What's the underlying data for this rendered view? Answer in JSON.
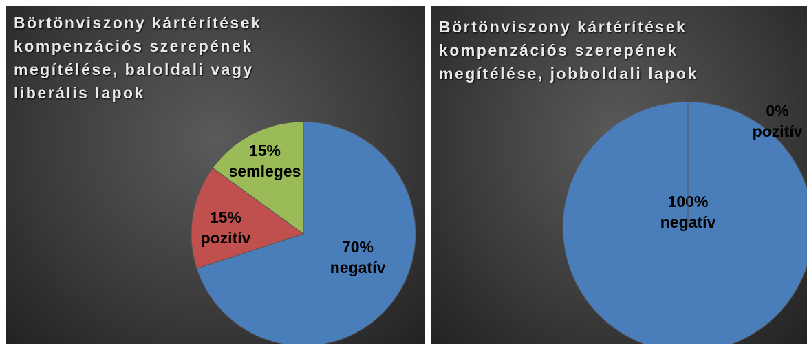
{
  "chart_data": [
    {
      "type": "pie",
      "title": "Börtönviszony kártérítések kompenzációs szerepének megítélése, baloldali vagy liberális lapok",
      "categories": [
        "negatív",
        "pozitív",
        "semleges"
      ],
      "values": [
        70,
        15,
        15
      ],
      "value_labels": [
        "70%",
        "15%",
        "15%"
      ],
      "colors": [
        "#4a7ebb",
        "#c0504d",
        "#9bbb59"
      ]
    },
    {
      "type": "pie",
      "title": "Börtönviszony kártérítések kompenzációs szerepének megítélése, jobboldali lapok",
      "categories": [
        "negatív",
        "pozitív"
      ],
      "values": [
        100,
        0
      ],
      "value_labels": [
        "100%",
        "0%"
      ],
      "colors": [
        "#4a7ebb",
        "#c0504d"
      ]
    }
  ]
}
